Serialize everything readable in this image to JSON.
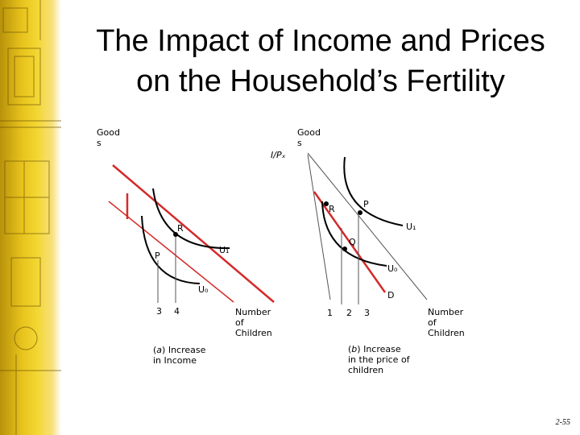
{
  "slide": {
    "title_line1": "The Impact of Income and Prices",
    "title_line2": "on the Household’s Fertility",
    "page_number": "2-55"
  },
  "panel_a": {
    "y_axis_label": "Good\ns",
    "budget_label": "I/Pₓ",
    "point_r": "R",
    "point_p": "P",
    "curve_u1": "U₁",
    "curve_u0": "U₀",
    "tick_3": "3",
    "tick_4": "4",
    "x_axis_label": "Number\nof\nChildren",
    "caption_prefix": "(",
    "caption_letter": "a",
    "caption_rest": ") Increase\nin Income"
  },
  "panel_b": {
    "y_axis_label": "Good\ns",
    "point_r": "R",
    "point_p": "P",
    "point_q": "Q",
    "point_d": "D",
    "curve_u1": "U₁",
    "curve_u0": "U₀",
    "tick_1": "1",
    "tick_2": "2",
    "tick_3": "3",
    "x_axis_label": "Number\nof\nChildren",
    "caption_prefix": "(",
    "caption_letter": "b",
    "caption_rest": ") Increase\nin the price of\nchildren"
  },
  "colors": {
    "budget_red": "#d42a2a",
    "curve_black": "#000000",
    "thin_line": "#555555",
    "band_gold": "#e7c21c"
  }
}
